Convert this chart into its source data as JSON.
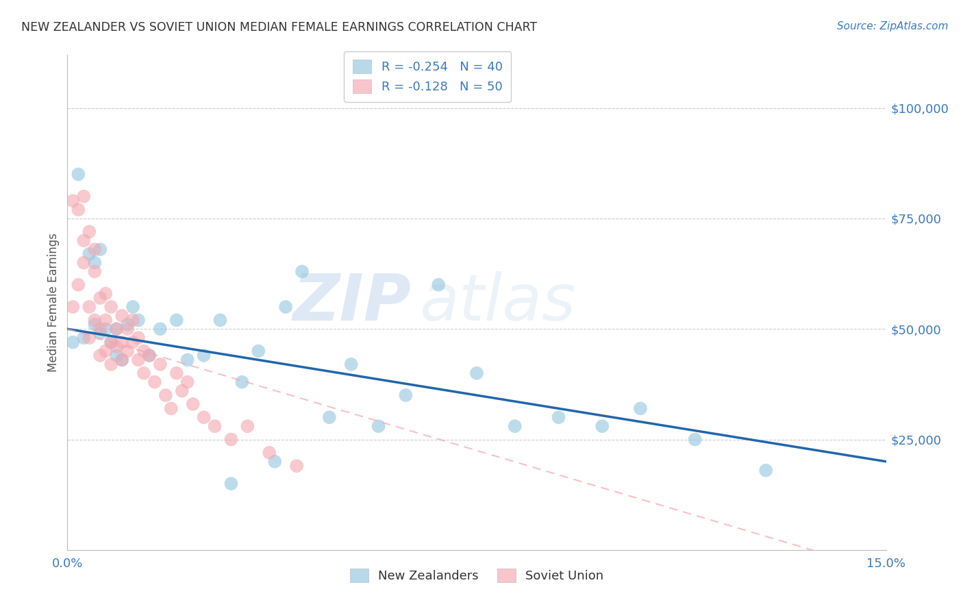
{
  "title": "NEW ZEALANDER VS SOVIET UNION MEDIAN FEMALE EARNINGS CORRELATION CHART",
  "source": "Source: ZipAtlas.com",
  "ylabel": "Median Female Earnings",
  "xlim": [
    0.0,
    0.15
  ],
  "ylim": [
    0,
    112000
  ],
  "xticks": [
    0.0,
    0.15
  ],
  "xticklabels": [
    "0.0%",
    "15.0%"
  ],
  "yticks": [
    25000,
    50000,
    75000,
    100000
  ],
  "yticklabels": [
    "$25,000",
    "$50,000",
    "$75,000",
    "$100,000"
  ],
  "nz_color": "#92c5de",
  "su_color": "#f4a6b0",
  "nz_line_color": "#2166ac",
  "su_line_color": "#f4a6b0",
  "nz_R": -0.254,
  "nz_N": 40,
  "su_R": -0.128,
  "su_N": 50,
  "legend_labels": [
    "New Zealanders",
    "Soviet Union"
  ],
  "watermark_zip": "ZIP",
  "watermark_atlas": "atlas",
  "nz_x": [
    0.001,
    0.002,
    0.003,
    0.004,
    0.005,
    0.005,
    0.006,
    0.006,
    0.007,
    0.008,
    0.009,
    0.009,
    0.01,
    0.011,
    0.012,
    0.013,
    0.015,
    0.017,
    0.02,
    0.022,
    0.025,
    0.028,
    0.03,
    0.032,
    0.035,
    0.038,
    0.04,
    0.043,
    0.048,
    0.052,
    0.057,
    0.062,
    0.068,
    0.075,
    0.082,
    0.09,
    0.098,
    0.105,
    0.115,
    0.128
  ],
  "nz_y": [
    47000,
    85000,
    48000,
    67000,
    51000,
    65000,
    49000,
    68000,
    50000,
    47000,
    44000,
    50000,
    43000,
    51000,
    55000,
    52000,
    44000,
    50000,
    52000,
    43000,
    44000,
    52000,
    15000,
    38000,
    45000,
    20000,
    55000,
    63000,
    30000,
    42000,
    28000,
    35000,
    60000,
    40000,
    28000,
    30000,
    28000,
    32000,
    25000,
    18000
  ],
  "su_x": [
    0.001,
    0.001,
    0.002,
    0.002,
    0.003,
    0.003,
    0.003,
    0.004,
    0.004,
    0.004,
    0.005,
    0.005,
    0.005,
    0.006,
    0.006,
    0.006,
    0.007,
    0.007,
    0.007,
    0.008,
    0.008,
    0.008,
    0.009,
    0.009,
    0.01,
    0.01,
    0.01,
    0.011,
    0.011,
    0.012,
    0.012,
    0.013,
    0.013,
    0.014,
    0.014,
    0.015,
    0.016,
    0.017,
    0.018,
    0.019,
    0.02,
    0.021,
    0.022,
    0.023,
    0.025,
    0.027,
    0.03,
    0.033,
    0.037,
    0.042
  ],
  "su_y": [
    55000,
    79000,
    60000,
    77000,
    70000,
    65000,
    80000,
    72000,
    55000,
    48000,
    68000,
    52000,
    63000,
    57000,
    50000,
    44000,
    58000,
    45000,
    52000,
    47000,
    55000,
    42000,
    50000,
    46000,
    53000,
    47000,
    43000,
    50000,
    45000,
    52000,
    47000,
    48000,
    43000,
    45000,
    40000,
    44000,
    38000,
    42000,
    35000,
    32000,
    40000,
    36000,
    38000,
    33000,
    30000,
    28000,
    25000,
    28000,
    22000,
    19000
  ]
}
